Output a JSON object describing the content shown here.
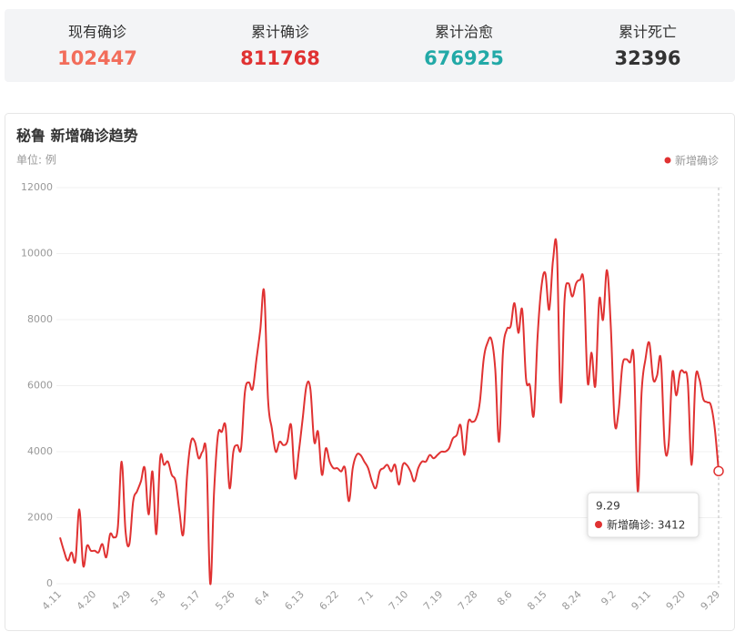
{
  "stats": [
    {
      "label": "现有确诊",
      "value": 102447,
      "color": "#f26d5b"
    },
    {
      "label": "累计确诊",
      "value": 811768,
      "color": "#e03232"
    },
    {
      "label": "累计治愈",
      "value": 676925,
      "color": "#22a9a7"
    },
    {
      "label": "累计死亡",
      "value": 32396,
      "color": "#333333"
    }
  ],
  "chart_data": {
    "type": "line",
    "title": "秘鲁 新增确诊趋势",
    "unit_label": "单位: 例",
    "legend_position": "top-right",
    "grid": true,
    "ylim": [
      0,
      12000
    ],
    "yticks": [
      0,
      2000,
      4000,
      6000,
      8000,
      10000,
      12000
    ],
    "categories": [
      "4.11",
      null,
      null,
      null,
      null,
      null,
      null,
      null,
      null,
      "4.20",
      null,
      null,
      null,
      null,
      null,
      null,
      null,
      null,
      "4.29",
      null,
      null,
      null,
      null,
      null,
      null,
      null,
      null,
      "5.8",
      null,
      null,
      null,
      null,
      null,
      null,
      null,
      null,
      "5.17",
      null,
      null,
      null,
      null,
      null,
      null,
      null,
      null,
      "5.26",
      null,
      null,
      null,
      null,
      null,
      null,
      null,
      null,
      "6.4",
      null,
      null,
      null,
      null,
      null,
      null,
      null,
      null,
      "6.13",
      null,
      null,
      null,
      null,
      null,
      null,
      null,
      null,
      "6.22",
      null,
      null,
      null,
      null,
      null,
      null,
      null,
      null,
      "7.1",
      null,
      null,
      null,
      null,
      null,
      null,
      null,
      null,
      "7.10",
      null,
      null,
      null,
      null,
      null,
      null,
      null,
      null,
      "7.19",
      null,
      null,
      null,
      null,
      null,
      null,
      null,
      null,
      "7.28",
      null,
      null,
      null,
      null,
      null,
      null,
      null,
      null,
      "8.6",
      null,
      null,
      null,
      null,
      null,
      null,
      null,
      null,
      "8.15",
      null,
      null,
      null,
      null,
      null,
      null,
      null,
      null,
      "8.24",
      null,
      null,
      null,
      null,
      null,
      null,
      null,
      null,
      "9.2",
      null,
      null,
      null,
      null,
      null,
      null,
      null,
      null,
      "9.11",
      null,
      null,
      null,
      null,
      null,
      null,
      null,
      null,
      "9.20",
      null,
      null,
      null,
      null,
      null,
      null,
      null,
      null,
      "9.29"
    ],
    "series": [
      {
        "name": "新增确诊",
        "color": "#e03232",
        "values": [
          1400,
          1000,
          700,
          950,
          700,
          2250,
          550,
          1150,
          1000,
          1000,
          950,
          1200,
          800,
          1500,
          1400,
          1700,
          3700,
          1600,
          1200,
          2500,
          2800,
          3100,
          3500,
          2100,
          3400,
          1500,
          3800,
          3600,
          3700,
          3300,
          3100,
          2200,
          1500,
          3300,
          4300,
          4300,
          3800,
          4000,
          3900,
          0,
          2800,
          4500,
          4600,
          4750,
          2900,
          4000,
          4200,
          4100,
          5800,
          6100,
          5900,
          6800,
          7700,
          8850,
          5600,
          4700,
          4000,
          4300,
          4200,
          4300,
          4800,
          3200,
          4000,
          5000,
          6000,
          5900,
          4300,
          4600,
          3300,
          4100,
          3700,
          3500,
          3500,
          3400,
          3500,
          2500,
          3500,
          3900,
          3900,
          3700,
          3500,
          3100,
          2900,
          3400,
          3500,
          3600,
          3400,
          3600,
          3000,
          3600,
          3600,
          3400,
          3100,
          3500,
          3700,
          3700,
          3900,
          3800,
          3900,
          4000,
          4000,
          4100,
          4400,
          4500,
          4800,
          3900,
          4900,
          4900,
          5000,
          5500,
          6800,
          7300,
          7400,
          6500,
          4300,
          7000,
          7700,
          7800,
          8500,
          7600,
          8300,
          6200,
          6000,
          5100,
          7500,
          9000,
          9400,
          8300,
          9800,
          10100,
          5500,
          8600,
          9100,
          8700,
          9100,
          9200,
          9100,
          6100,
          7000,
          6000,
          8600,
          8000,
          9500,
          7800,
          4900,
          5200,
          6600,
          6800,
          6700,
          6800,
          2800,
          5800,
          6800,
          7300,
          6200,
          6300,
          6800,
          4200,
          4200,
          6400,
          5700,
          6400,
          6400,
          6100,
          3600,
          6200,
          6200,
          5600,
          5500,
          5400,
          4700,
          3412
        ]
      }
    ],
    "tooltip": {
      "title": "9.29",
      "text": "新增确诊: 3412"
    }
  }
}
